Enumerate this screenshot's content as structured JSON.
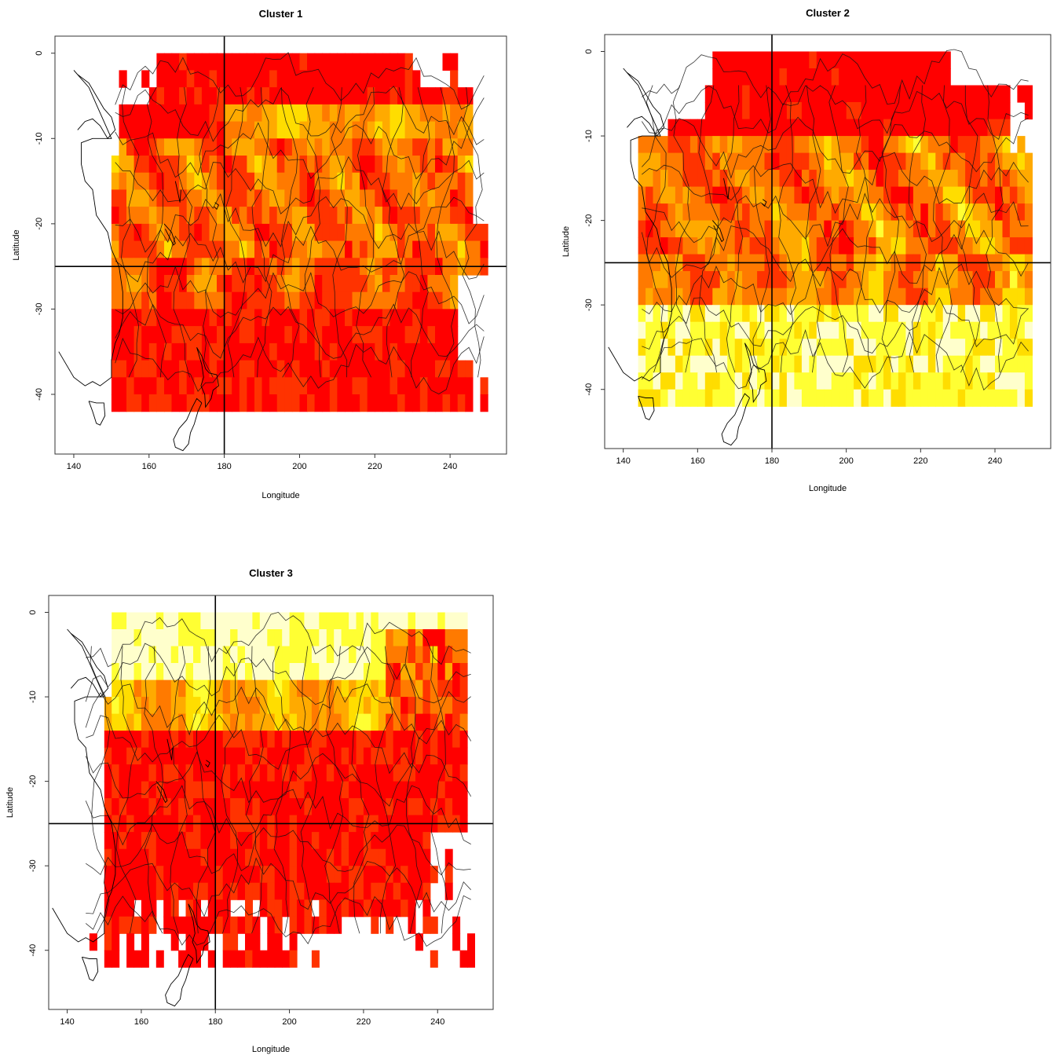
{
  "chart_data": [
    {
      "type": "heatmap",
      "title": "Cluster 1",
      "xlabel": "Longitude",
      "ylabel": "Latitude",
      "xlim": [
        135,
        255
      ],
      "ylim": [
        -47,
        2
      ],
      "x_ticks": [
        140,
        160,
        180,
        200,
        220,
        240
      ],
      "y_ticks": [
        0,
        -10,
        -20,
        -30,
        -40
      ],
      "reference_lines": {
        "longitude": 180,
        "latitude": -25
      },
      "grid_resolution_deg": [
        2,
        2
      ],
      "extent": {
        "lon": [
          151,
          249
        ],
        "lat": [
          -41,
          -1
        ]
      },
      "dominant_pattern": "red/orange at tropics and south, yellow band near 10-20S east of 180",
      "color_scale": [
        "#ffffcc",
        "#ffff00",
        "#ffcc00",
        "#ff8000",
        "#ff0000"
      ]
    },
    {
      "type": "heatmap",
      "title": "Cluster 2",
      "xlabel": "Longitude",
      "ylabel": "Latitude",
      "xlim": [
        135,
        255
      ],
      "ylim": [
        -47,
        2
      ],
      "x_ticks": [
        140,
        160,
        180,
        200,
        220,
        240
      ],
      "y_ticks": [
        0,
        -10,
        -20,
        -30,
        -40
      ],
      "reference_lines": {
        "longitude": 180,
        "latitude": -25
      },
      "grid_resolution_deg": [
        2,
        2
      ],
      "extent": {
        "lon": [
          145,
          249
        ],
        "lat": [
          -41,
          -1
        ]
      },
      "dominant_pattern": "red north of 10S, orange/yellow mid, pale yellow south of 30S",
      "color_scale": [
        "#ffffcc",
        "#ffff00",
        "#ffcc00",
        "#ff8000",
        "#ff0000"
      ]
    },
    {
      "type": "heatmap",
      "title": "Cluster 3",
      "xlabel": "Longitude",
      "ylabel": "Latitude",
      "xlim": [
        135,
        255
      ],
      "ylim": [
        -47,
        2
      ],
      "x_ticks": [
        140,
        160,
        180,
        200,
        220,
        240
      ],
      "y_ticks": [
        0,
        -10,
        -20,
        -30,
        -40
      ],
      "reference_lines": {
        "longitude": 180,
        "latitude": -25
      },
      "grid_resolution_deg": [
        2,
        2
      ],
      "extent": {
        "lon": [
          145,
          249
        ],
        "lat": [
          -41,
          -1
        ]
      },
      "dominant_pattern": "pale yellow north of 10S, red south of 15S",
      "color_scale": [
        "#ffffcc",
        "#ffff00",
        "#ffcc00",
        "#ff8000",
        "#ff0000"
      ]
    }
  ]
}
